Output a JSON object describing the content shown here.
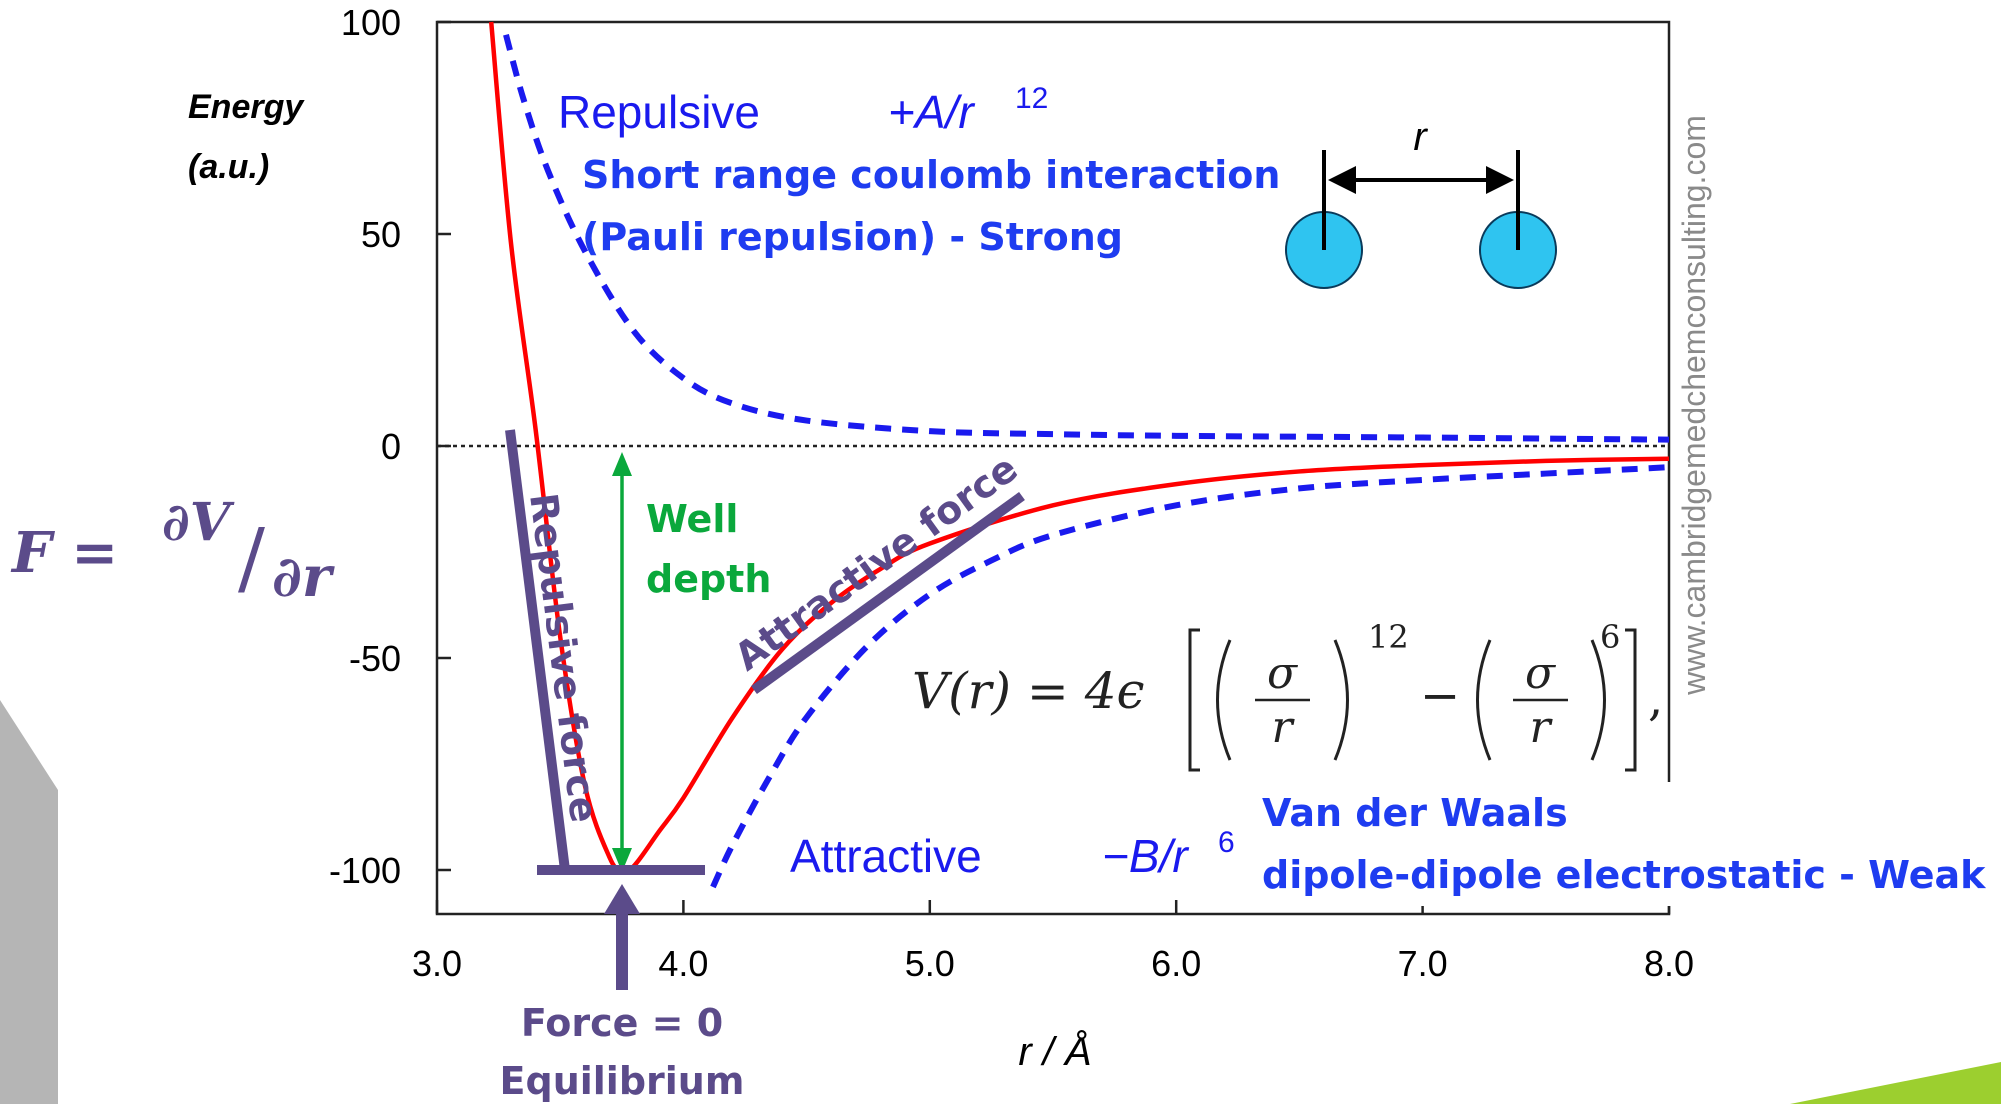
{
  "colors": {
    "lj_curve": "#ff0000",
    "component_curves": "#1a1aee",
    "annotation_blue": "#1e3cf0",
    "annotation_purple": "#5b4b8a",
    "well_depth_green": "#0aa83c",
    "atom_fill": "#2fc4f0",
    "zero_line": "#222222",
    "watermark": "#8a8a8a",
    "slide_gray": "#b5b5b5",
    "slide_green": "#9ccf2f"
  },
  "icons": [
    "atom-circle-icon",
    "double-arrow-icon",
    "up-arrow-icon"
  ],
  "chart_data": {
    "type": "line",
    "xlabel": "r / Å",
    "ylabel_lines": [
      "Energy",
      "(a.u.)"
    ],
    "xlim": [
      3.0,
      8.0
    ],
    "ylim": [
      -110,
      100
    ],
    "x_ticks": [
      3.0,
      4.0,
      5.0,
      6.0,
      7.0,
      8.0
    ],
    "x_tick_labels": [
      "3.0",
      "4.0",
      "5.0",
      "6.0",
      "7.0",
      "8.0"
    ],
    "y_ticks": [
      100,
      50,
      0,
      -50,
      -100
    ],
    "y_tick_labels": [
      "100",
      "50",
      "0",
      "-50",
      "-100"
    ],
    "zero_line": true,
    "grid": false,
    "series": [
      {
        "style": "solid",
        "color": "#ff0000",
        "x": [
          3.22,
          3.3,
          3.4,
          3.5,
          3.6,
          3.7,
          3.75,
          3.8,
          3.9,
          4.0,
          4.2,
          4.4,
          4.6,
          4.8,
          5.0,
          5.5,
          6.0,
          6.5,
          7.0,
          7.5,
          8.0
        ],
        "y": [
          100,
          48,
          4,
          -45,
          -80,
          -97,
          -100,
          -99,
          -91,
          -83,
          -64,
          -48,
          -37,
          -29,
          -23,
          -14,
          -9,
          -6,
          -4.5,
          -3.5,
          -3
        ]
      },
      {
        "style": "dashed",
        "color": "#1a1aee",
        "x": [
          3.28,
          3.35,
          3.45,
          3.6,
          3.8,
          4.0,
          4.2,
          4.5,
          5.0,
          5.5,
          6.0,
          7.0,
          8.0
        ],
        "y": [
          97,
          82,
          65,
          46,
          27,
          16,
          10,
          6,
          3.5,
          2.8,
          2.4,
          2.0,
          1.5
        ]
      },
      {
        "style": "dashed",
        "color": "#1a1aee",
        "x": [
          4.12,
          4.2,
          4.35,
          4.5,
          4.75,
          5.0,
          5.25,
          5.5,
          6.0,
          6.5,
          7.0,
          7.5,
          8.0
        ],
        "y": [
          -104,
          -94,
          -78,
          -64,
          -47,
          -35,
          -27,
          -21,
          -14,
          -10,
          -8,
          -6.5,
          -5
        ]
      }
    ],
    "annotations": {
      "repulsive_label": "Repulsive",
      "repulsive_formula": "+A/r",
      "repulsive_exponent": "12",
      "short_range_line1": "Short range coulomb interaction",
      "short_range_line2": "(Pauli repulsion) - Strong",
      "distance_symbol": "r",
      "attractive_label": "Attractive",
      "attractive_formula": "−B/r",
      "attractive_exponent": "6",
      "vdw_line1": "Van der Waals",
      "vdw_line2": "dipole-dipole electrostatic - Weak",
      "well_line1": "Well",
      "well_line2": "depth",
      "repulsive_force": "Repulsive force",
      "attractive_force": "Attractive force",
      "force_zero_line1": "Force = 0",
      "force_zero_line2": "Equilibrium",
      "lj_prefix": "V(r) = 4ϵ",
      "sigma_over_r_num": "σ",
      "sigma_over_r_den": "r",
      "lj_exp12": "12",
      "lj_exp6": "6",
      "force_lhs": "F =",
      "force_num": "∂V",
      "force_den": "∂r",
      "watermark": "www.cambridgemedchemconsulting.com"
    }
  }
}
